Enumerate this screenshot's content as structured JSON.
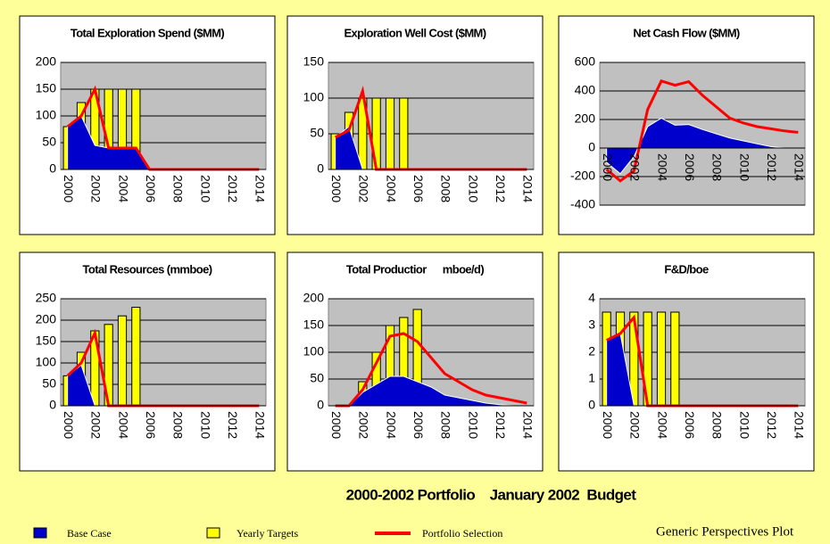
{
  "chart_data": [
    {
      "type": "combo",
      "title": "Total Exploration Spend ($MM)",
      "categories": [
        "2000",
        null,
        "2002",
        null,
        "2004",
        null,
        "2006",
        null,
        "2008",
        null,
        "2010",
        null,
        "2012",
        null,
        "2014"
      ],
      "series": [
        {
          "type": "bar",
          "color": "#ffff00",
          "values": [
            80,
            125,
            150,
            150,
            150,
            150,
            null,
            null,
            null,
            null,
            null,
            null,
            null,
            null,
            null
          ]
        },
        {
          "type": "area",
          "color": "#0000cc",
          "values": [
            80,
            100,
            45,
            40,
            40,
            40,
            0,
            0,
            0,
            0,
            0,
            0,
            0,
            0,
            0
          ]
        },
        {
          "type": "line",
          "color": "#ff0000",
          "values": [
            80,
            100,
            150,
            40,
            40,
            40,
            0,
            0,
            0,
            0,
            0,
            0,
            0,
            0,
            0
          ]
        }
      ],
      "ylim": [
        0,
        200
      ],
      "yticks": [
        0,
        50,
        100,
        150,
        200
      ],
      "grid": true
    },
    {
      "type": "combo",
      "title": "Exploration Well Cost ($MM)",
      "categories": [
        "2000",
        null,
        "2002",
        null,
        "2004",
        null,
        "2006",
        null,
        "2008",
        null,
        "2010",
        null,
        "2012",
        null,
        "2014"
      ],
      "series": [
        {
          "type": "bar",
          "color": "#ffff00",
          "values": [
            50,
            80,
            100,
            100,
            100,
            100,
            null,
            null,
            null,
            null,
            null,
            null,
            null,
            null,
            null
          ]
        },
        {
          "type": "area",
          "color": "#0000cc",
          "values": [
            45,
            60,
            0,
            0,
            0,
            0,
            0,
            0,
            0,
            0,
            0,
            0,
            0,
            0,
            0
          ]
        },
        {
          "type": "line",
          "color": "#ff0000",
          "values": [
            45,
            55,
            110,
            0,
            0,
            0,
            0,
            0,
            0,
            0,
            0,
            0,
            0,
            0,
            0
          ]
        }
      ],
      "ylim": [
        0,
        150
      ],
      "yticks": [
        0,
        50,
        100,
        150
      ],
      "grid": true
    },
    {
      "type": "combo",
      "title": "Net Cash Flow ($MM)",
      "categories": [
        "2000",
        null,
        "2002",
        null,
        "2004",
        null,
        "2006",
        null,
        "2008",
        null,
        "2010",
        null,
        "2012",
        null,
        "2014"
      ],
      "series": [
        {
          "type": "area",
          "color": "#0000cc",
          "values": [
            -100,
            -180,
            -60,
            150,
            210,
            160,
            165,
            130,
            100,
            70,
            50,
            30,
            10,
            0,
            0
          ]
        },
        {
          "type": "line",
          "color": "#ff0000",
          "values": [
            -150,
            -230,
            -160,
            270,
            470,
            440,
            465,
            370,
            290,
            210,
            175,
            150,
            135,
            120,
            110
          ]
        }
      ],
      "ylim": [
        -400,
        600
      ],
      "yticks": [
        -400,
        -200,
        0,
        200,
        400,
        600
      ],
      "grid": true
    },
    {
      "type": "combo",
      "title": "Total Resources (mmboe)",
      "categories": [
        "2000",
        null,
        "2002",
        null,
        "2004",
        null,
        "2006",
        null,
        "2008",
        null,
        "2010",
        null,
        "2012",
        null,
        "2014"
      ],
      "series": [
        {
          "type": "bar",
          "color": "#ffff00",
          "values": [
            70,
            125,
            175,
            190,
            210,
            230,
            null,
            null,
            null,
            null,
            null,
            null,
            null,
            null,
            null
          ]
        },
        {
          "type": "area",
          "color": "#0000cc",
          "values": [
            70,
            95,
            0,
            0,
            0,
            0,
            0,
            0,
            0,
            0,
            0,
            0,
            0,
            0,
            0
          ]
        },
        {
          "type": "line",
          "color": "#ff0000",
          "values": [
            70,
            100,
            170,
            0,
            0,
            0,
            0,
            0,
            0,
            0,
            0,
            0,
            0,
            0,
            0
          ]
        }
      ],
      "ylim": [
        0,
        250
      ],
      "yticks": [
        0,
        50,
        100,
        150,
        200,
        250
      ],
      "grid": true
    },
    {
      "type": "combo",
      "title": "Total Productior      mboe/d)",
      "categories": [
        "2000",
        null,
        "2002",
        null,
        "2004",
        null,
        "2006",
        null,
        "2008",
        null,
        "2010",
        null,
        "2012",
        null,
        "2014"
      ],
      "series": [
        {
          "type": "bar",
          "color": "#ffff00",
          "values": [
            null,
            null,
            45,
            100,
            150,
            165,
            180,
            null,
            null,
            null,
            null,
            null,
            null,
            null,
            null
          ]
        },
        {
          "type": "area",
          "color": "#0000cc",
          "values": [
            0,
            0,
            25,
            40,
            55,
            55,
            45,
            35,
            20,
            15,
            10,
            5,
            2,
            0,
            0
          ]
        },
        {
          "type": "line",
          "color": "#ff0000",
          "values": [
            0,
            0,
            30,
            80,
            130,
            135,
            120,
            90,
            60,
            45,
            30,
            20,
            15,
            10,
            5
          ]
        }
      ],
      "ylim": [
        0,
        200
      ],
      "yticks": [
        0,
        50,
        100,
        150,
        200
      ],
      "grid": true
    },
    {
      "type": "combo",
      "title": "F&D/boe",
      "categories": [
        "2000",
        null,
        "2002",
        null,
        "2004",
        null,
        "2006",
        null,
        "2008",
        null,
        "2010",
        null,
        "2012",
        null,
        "2014"
      ],
      "series": [
        {
          "type": "bar",
          "color": "#ffff00",
          "values": [
            3.5,
            3.5,
            3.5,
            3.5,
            3.5,
            3.5,
            null,
            null,
            null,
            null,
            null,
            null,
            null,
            null,
            null
          ]
        },
        {
          "type": "area",
          "color": "#0000cc",
          "values": [
            2.5,
            2.7,
            0,
            0,
            0,
            0,
            0,
            0,
            0,
            0,
            0,
            0,
            0,
            0,
            0
          ]
        },
        {
          "type": "line",
          "color": "#ff0000",
          "values": [
            2.45,
            2.7,
            3.3,
            0,
            0,
            0,
            0,
            0,
            0,
            0,
            0,
            0,
            0,
            0,
            0
          ]
        }
      ],
      "ylim": [
        0,
        4
      ],
      "yticks": [
        0,
        1,
        2,
        3,
        4
      ],
      "grid": true
    }
  ],
  "footer": {
    "title": "2000-2002 Portfolio    January 2002  Budget",
    "legend": [
      {
        "name": "Base Case",
        "color": "#0000cc"
      },
      {
        "name": "Yearly Targets",
        "color": "#ffff00"
      },
      {
        "name": "Portfolio Selection",
        "color": "#ff0000"
      }
    ],
    "caption": "Generic Perspectives Plot"
  }
}
